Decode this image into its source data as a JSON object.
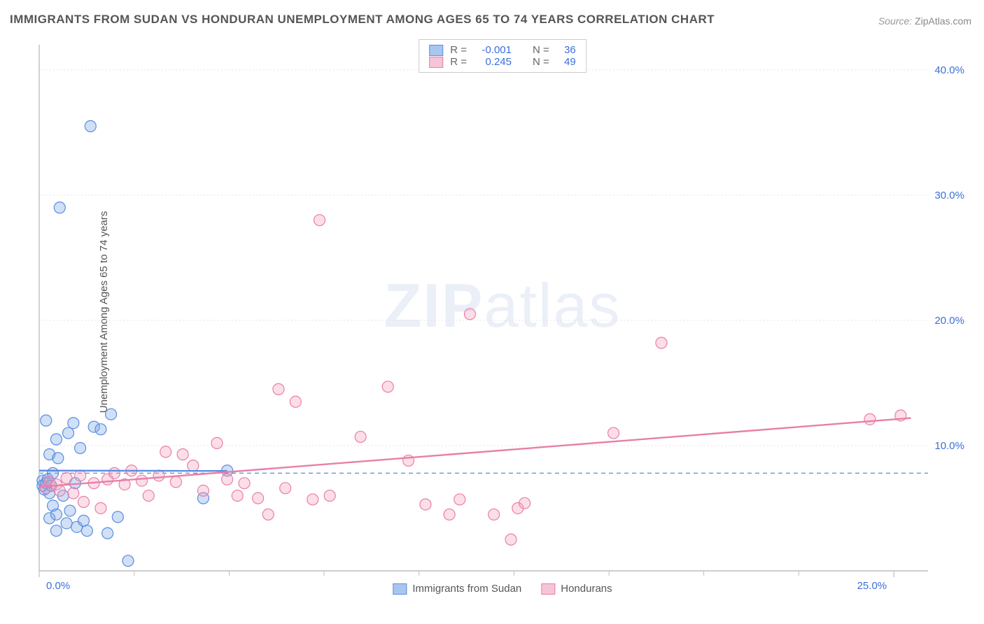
{
  "title": "IMMIGRANTS FROM SUDAN VS HONDURAN UNEMPLOYMENT AMONG AGES 65 TO 74 YEARS CORRELATION CHART",
  "source_label": "Source:",
  "source_value": "ZipAtlas.com",
  "ylabel": "Unemployment Among Ages 65 to 74 years",
  "watermark_zip": "ZIP",
  "watermark_atlas": "atlas",
  "chart": {
    "type": "scatter",
    "xlim": [
      0,
      26
    ],
    "ylim": [
      0,
      42
    ],
    "xaxis_ticks": [
      0,
      25
    ],
    "xaxis_labels": [
      "0.0%",
      "25.0%"
    ],
    "yaxis_ticks": [
      10,
      20,
      30,
      40
    ],
    "yaxis_labels": [
      "10.0%",
      "20.0%",
      "30.0%",
      "40.0%"
    ],
    "xaxis_minor_ticks": [
      2.78,
      5.56,
      8.33,
      11.11,
      13.89,
      16.67,
      19.44,
      22.22
    ],
    "yaxis_grid": [
      10,
      20,
      30,
      40
    ],
    "background_color": "#ffffff",
    "grid_color": "#e3e3e3",
    "axis_color": "#bfbfbf",
    "tick_label_color": "#3b6fd8",
    "dashed_line_y": 7.8,
    "dashed_line_color": "#5b8ce0",
    "marker_radius": 8,
    "marker_stroke_width": 1.2,
    "trendline_width": 2.4
  },
  "series": [
    {
      "name": "Immigrants from Sudan",
      "fill_color": "rgba(120,165,230,0.35)",
      "stroke_color": "#5b8ce0",
      "swatch_fill": "#a9c6f0",
      "swatch_border": "#5b8ce0",
      "R": "-0.001",
      "N": "36",
      "trend": {
        "x1": 0,
        "y1": 8.0,
        "x2": 5.5,
        "y2": 7.98
      },
      "points": [
        [
          0.1,
          6.8
        ],
        [
          0.1,
          7.2
        ],
        [
          0.15,
          6.5
        ],
        [
          0.2,
          7.0
        ],
        [
          0.2,
          12.0
        ],
        [
          0.25,
          7.3
        ],
        [
          0.3,
          6.2
        ],
        [
          0.3,
          9.3
        ],
        [
          0.3,
          4.2
        ],
        [
          0.35,
          6.8
        ],
        [
          0.4,
          5.2
        ],
        [
          0.4,
          7.8
        ],
        [
          0.5,
          4.5
        ],
        [
          0.5,
          10.5
        ],
        [
          0.5,
          3.2
        ],
        [
          0.55,
          9.0
        ],
        [
          0.6,
          29.0
        ],
        [
          0.7,
          6.0
        ],
        [
          0.8,
          3.8
        ],
        [
          0.85,
          11.0
        ],
        [
          0.9,
          4.8
        ],
        [
          1.0,
          11.8
        ],
        [
          1.05,
          7.0
        ],
        [
          1.1,
          3.5
        ],
        [
          1.2,
          9.8
        ],
        [
          1.3,
          4.0
        ],
        [
          1.4,
          3.2
        ],
        [
          1.5,
          35.5
        ],
        [
          1.6,
          11.5
        ],
        [
          1.8,
          11.3
        ],
        [
          2.0,
          3.0
        ],
        [
          2.1,
          12.5
        ],
        [
          2.3,
          4.3
        ],
        [
          2.6,
          0.8
        ],
        [
          4.8,
          5.8
        ],
        [
          5.5,
          8.0
        ]
      ]
    },
    {
      "name": "Hondurans",
      "fill_color": "rgba(245,160,190,0.35)",
      "stroke_color": "#e77fa8",
      "swatch_fill": "#f6c4d7",
      "swatch_border": "#e77fa8",
      "R": "0.245",
      "N": "49",
      "trend": {
        "x1": 0,
        "y1": 6.7,
        "x2": 25.5,
        "y2": 12.2
      },
      "points": [
        [
          0.2,
          6.6
        ],
        [
          0.3,
          7.1
        ],
        [
          0.5,
          6.9
        ],
        [
          0.6,
          6.4
        ],
        [
          0.8,
          7.4
        ],
        [
          1.0,
          6.2
        ],
        [
          1.2,
          7.6
        ],
        [
          1.3,
          5.5
        ],
        [
          1.6,
          7.0
        ],
        [
          1.8,
          5.0
        ],
        [
          2.0,
          7.3
        ],
        [
          2.2,
          7.8
        ],
        [
          2.5,
          6.9
        ],
        [
          2.7,
          8.0
        ],
        [
          3.0,
          7.2
        ],
        [
          3.2,
          6.0
        ],
        [
          3.5,
          7.6
        ],
        [
          3.7,
          9.5
        ],
        [
          4.0,
          7.1
        ],
        [
          4.2,
          9.3
        ],
        [
          4.5,
          8.4
        ],
        [
          4.8,
          6.4
        ],
        [
          5.2,
          10.2
        ],
        [
          5.5,
          7.3
        ],
        [
          5.8,
          6.0
        ],
        [
          6.0,
          7.0
        ],
        [
          6.4,
          5.8
        ],
        [
          6.7,
          4.5
        ],
        [
          7.0,
          14.5
        ],
        [
          7.2,
          6.6
        ],
        [
          7.5,
          13.5
        ],
        [
          8.0,
          5.7
        ],
        [
          8.2,
          28.0
        ],
        [
          8.5,
          6.0
        ],
        [
          9.4,
          10.7
        ],
        [
          10.2,
          14.7
        ],
        [
          10.8,
          8.8
        ],
        [
          11.3,
          5.3
        ],
        [
          12.0,
          4.5
        ],
        [
          12.3,
          5.7
        ],
        [
          12.6,
          20.5
        ],
        [
          13.3,
          4.5
        ],
        [
          13.8,
          2.5
        ],
        [
          14.0,
          5.0
        ],
        [
          14.2,
          5.4
        ],
        [
          16.8,
          11.0
        ],
        [
          18.2,
          18.2
        ],
        [
          24.3,
          12.1
        ],
        [
          25.2,
          12.4
        ]
      ]
    }
  ],
  "legend_top": {
    "r_label": "R =",
    "n_label": "N ="
  },
  "legend_bottom": {
    "item1": "Immigrants from Sudan",
    "item2": "Hondurans"
  }
}
